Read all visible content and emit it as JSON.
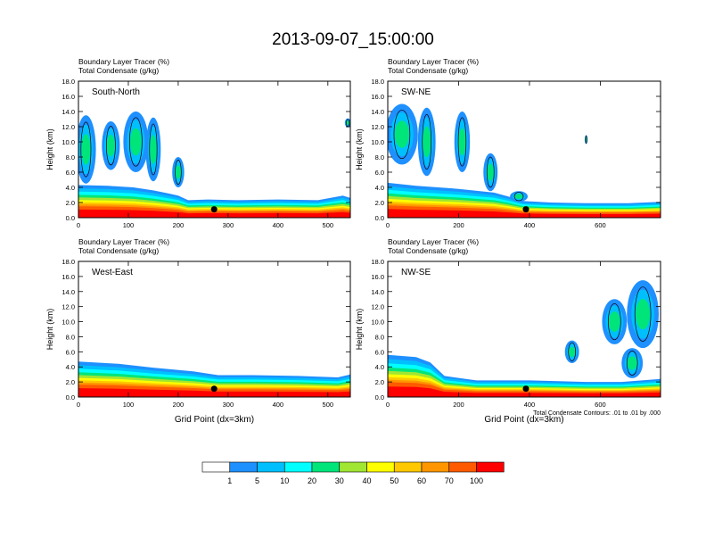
{
  "title": "2013-09-07_15:00:00",
  "palette": {
    "levels": [
      "1",
      "5",
      "10",
      "20",
      "30",
      "40",
      "50",
      "60",
      "70",
      "100"
    ],
    "colors": [
      "#ffffff",
      "#1e90ff",
      "#00bfff",
      "#00ffff",
      "#00e57a",
      "#00e000",
      "#a0e632",
      "#ffff00",
      "#ffc800",
      "#ff9600",
      "#ff5a00",
      "#ff0000"
    ]
  },
  "chart_data": [
    {
      "type": "heatmap",
      "line1": "Boundary Layer Tracer   (%)",
      "line2": "Total Condensate   (g/kg)",
      "panel_label": "South-North",
      "ylabel": "Height (km)",
      "xlabel": "",
      "xlim": [
        0,
        545
      ],
      "ylim": [
        0,
        18
      ],
      "xticks": [
        0,
        100,
        200,
        300,
        400,
        500
      ],
      "yticks": [
        "0.0",
        "2.0",
        "4.0",
        "6.0",
        "8.0",
        "10.0",
        "12.0",
        "14.0",
        "16.0",
        "18.0"
      ],
      "dot": [
        272,
        1.1
      ],
      "plume_top": [
        [
          0,
          4.3
        ],
        [
          60,
          4.2
        ],
        [
          110,
          4.0
        ],
        [
          150,
          3.6
        ],
        [
          180,
          3.2
        ],
        [
          200,
          2.9
        ],
        [
          220,
          2.3
        ],
        [
          260,
          2.4
        ],
        [
          320,
          2.3
        ],
        [
          400,
          2.4
        ],
        [
          480,
          2.3
        ],
        [
          530,
          2.9
        ],
        [
          545,
          2.6
        ]
      ],
      "cells": [
        [
          15,
          9,
          20,
          4.5
        ],
        [
          65,
          9.5,
          18,
          3.2
        ],
        [
          115,
          10,
          25,
          4
        ],
        [
          150,
          9,
          15,
          4.2
        ],
        [
          200,
          6,
          12,
          2
        ],
        [
          540,
          12.5,
          6,
          0.6
        ]
      ],
      "note": ""
    },
    {
      "type": "heatmap",
      "line1": "Boundary Layer Tracer   (%)",
      "line2": "Total Condensate   (g/kg)",
      "panel_label": "SW-NE",
      "ylabel": "Height (km)",
      "xlabel": "",
      "xlim": [
        0,
        770
      ],
      "ylim": [
        0,
        18
      ],
      "xticks": [
        0,
        200,
        400,
        600
      ],
      "yticks": [
        "0.0",
        "2.0",
        "4.0",
        "6.0",
        "8.0",
        "10.0",
        "12.0",
        "14.0",
        "16.0",
        "18.0"
      ],
      "dot": [
        390,
        1.1
      ],
      "plume_top": [
        [
          0,
          4.6
        ],
        [
          80,
          4.2
        ],
        [
          200,
          3.8
        ],
        [
          300,
          3.3
        ],
        [
          340,
          2.8
        ],
        [
          380,
          2.2
        ],
        [
          460,
          2.0
        ],
        [
          560,
          1.9
        ],
        [
          680,
          1.9
        ],
        [
          770,
          2.1
        ]
      ],
      "cells": [
        [
          40,
          11,
          45,
          4
        ],
        [
          110,
          10,
          25,
          4.5
        ],
        [
          210,
          10,
          22,
          4
        ],
        [
          290,
          6,
          20,
          2.5
        ],
        [
          370,
          2.8,
          25,
          0.7
        ],
        [
          560,
          10.3,
          4,
          0.6
        ]
      ],
      "note": ""
    },
    {
      "type": "heatmap",
      "line1": "Boundary Layer Tracer   (%)",
      "line2": "Total Condensate   (g/kg)",
      "panel_label": "West-East",
      "ylabel": "Height (km)",
      "xlabel": "Grid Point (dx=3km)",
      "xlim": [
        0,
        545
      ],
      "ylim": [
        0,
        18
      ],
      "xticks": [
        0,
        100,
        200,
        300,
        400,
        500
      ],
      "yticks": [
        "0.0",
        "2.0",
        "4.0",
        "6.0",
        "8.0",
        "10.0",
        "12.0",
        "14.0",
        "16.0",
        "18.0"
      ],
      "dot": [
        272,
        1.1
      ],
      "plume_top": [
        [
          0,
          4.7
        ],
        [
          80,
          4.4
        ],
        [
          150,
          3.9
        ],
        [
          230,
          3.4
        ],
        [
          280,
          2.9
        ],
        [
          350,
          2.9
        ],
        [
          440,
          2.8
        ],
        [
          520,
          2.6
        ],
        [
          545,
          3.0
        ]
      ],
      "cells": [],
      "note": ""
    },
    {
      "type": "heatmap",
      "line1": "Boundary Layer Tracer   (%)",
      "line2": "Total Condensate   (g/kg)",
      "panel_label": "NW-SE",
      "ylabel": "Height (km)",
      "xlabel": "Grid Point (dx=3km)",
      "xlim": [
        0,
        770
      ],
      "ylim": [
        0,
        18
      ],
      "xticks": [
        0,
        200,
        400,
        600
      ],
      "yticks": [
        "0.0",
        "2.0",
        "4.0",
        "6.0",
        "8.0",
        "10.0",
        "12.0",
        "14.0",
        "16.0",
        "18.0"
      ],
      "dot": [
        390,
        1.1
      ],
      "plume_top": [
        [
          0,
          5.6
        ],
        [
          80,
          5.3
        ],
        [
          120,
          4.6
        ],
        [
          160,
          2.8
        ],
        [
          250,
          2.2
        ],
        [
          400,
          2.2
        ],
        [
          560,
          2.0
        ],
        [
          660,
          2.0
        ],
        [
          770,
          2.4
        ]
      ],
      "cells": [
        [
          720,
          11,
          45,
          4.5
        ],
        [
          640,
          10,
          35,
          3
        ],
        [
          690,
          4.5,
          30,
          2
        ],
        [
          520,
          6,
          20,
          1.5
        ]
      ],
      "note": "Total Condensate Contours: .01 to .01 by .000"
    }
  ]
}
